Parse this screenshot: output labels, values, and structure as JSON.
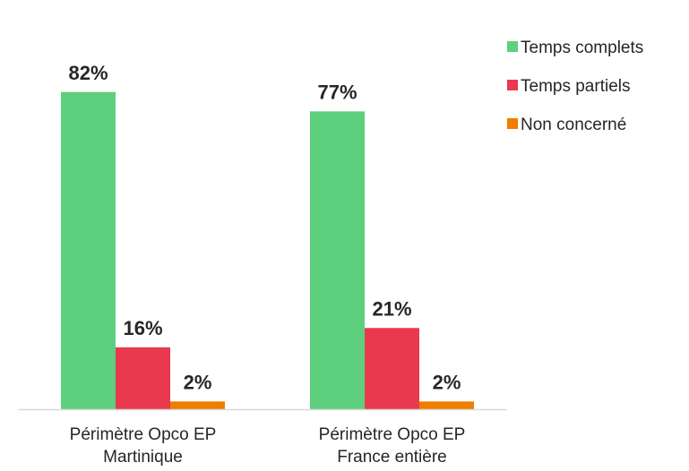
{
  "chart_data": {
    "type": "bar",
    "categories": [
      [
        "Périmètre Opco EP",
        "Martinique"
      ],
      [
        "Périmètre Opco EP",
        "France entière"
      ]
    ],
    "series": [
      {
        "name": "Temps complets",
        "color": "#5ecf7e",
        "values": [
          82,
          77
        ],
        "labels": [
          "82%",
          "77%"
        ]
      },
      {
        "name": "Temps partiels",
        "color": "#e8394f",
        "values": [
          16,
          21
        ],
        "labels": [
          "16%",
          "21%"
        ]
      },
      {
        "name": "Non concerné",
        "color": "#f07c00",
        "values": [
          2,
          2
        ],
        "labels": [
          "2%",
          "2%"
        ]
      }
    ],
    "ylim": [
      0,
      100
    ],
    "grid": false,
    "legend_position": "top-right",
    "axis_color": "#d9d9d9",
    "label_color": "#262626"
  }
}
